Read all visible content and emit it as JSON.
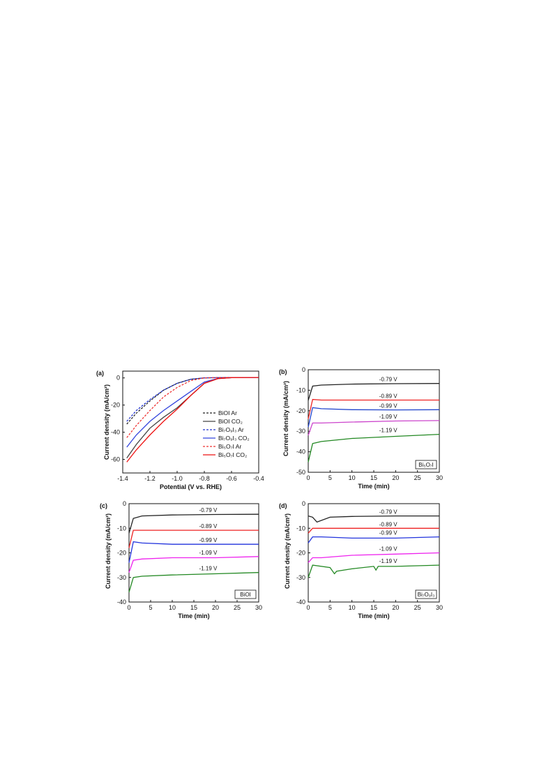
{
  "chart_data": [
    {
      "panel": "(a)",
      "type": "line",
      "xlabel": "Potential (V vs. RHE)",
      "ylabel": "Current density (mA/cm²)",
      "xlim": [
        -1.4,
        -0.4
      ],
      "ylim": [
        -70,
        5
      ],
      "xticks": [
        "-1.4",
        "-1.2",
        "-1.0",
        "-0.8",
        "-0.6",
        "-0.4"
      ],
      "yticks": [
        "0",
        "-20",
        "-40",
        "-60"
      ],
      "legend_position": "right",
      "series": [
        {
          "name": "BiOI Ar",
          "color": "#222222",
          "dash": true,
          "x": [
            -1.37,
            -1.3,
            -1.2,
            -1.1,
            -1.0,
            -0.9,
            -0.8,
            -0.7,
            -0.6,
            -0.4
          ],
          "y": [
            -34,
            -26,
            -17,
            -9,
            -4,
            -1,
            0,
            0.2,
            0.3,
            0.3
          ]
        },
        {
          "name": "BiOI CO₂",
          "color": "#444444",
          "dash": false,
          "x": [
            -1.37,
            -1.3,
            -1.2,
            -1.1,
            -1.0,
            -0.9,
            -0.8,
            -0.7,
            -0.6,
            -0.4
          ],
          "y": [
            -59,
            -49,
            -37,
            -29,
            -22,
            -13,
            -4,
            -0.5,
            0.2,
            0.3
          ]
        },
        {
          "name": "Bi₇O₉I₃ Ar",
          "color": "#2233cc",
          "dash": true,
          "x": [
            -1.37,
            -1.3,
            -1.2,
            -1.1,
            -1.0,
            -0.9,
            -0.8,
            -0.7,
            -0.6,
            -0.4
          ],
          "y": [
            -32,
            -24,
            -16,
            -9,
            -4,
            -1,
            0,
            0.2,
            0.3,
            0.3
          ]
        },
        {
          "name": "Bi₇O₉I₃ CO₂",
          "color": "#3344dd",
          "dash": false,
          "x": [
            -1.37,
            -1.3,
            -1.2,
            -1.1,
            -1.0,
            -0.9,
            -0.8,
            -0.7,
            -0.6,
            -0.4
          ],
          "y": [
            -51,
            -42,
            -32,
            -24,
            -17,
            -10,
            -3,
            -0.4,
            0.2,
            0.3
          ]
        },
        {
          "name": "Bi₅O₇I Ar",
          "color": "#ee3333",
          "dash": true,
          "x": [
            -1.37,
            -1.3,
            -1.2,
            -1.1,
            -1.0,
            -0.9,
            -0.8,
            -0.7,
            -0.6,
            -0.4
          ],
          "y": [
            -44,
            -35,
            -24,
            -14,
            -7,
            -2,
            0,
            0.2,
            0.3,
            0.3
          ]
        },
        {
          "name": "Bi₅O₇I CO₂",
          "color": "#ee1111",
          "dash": false,
          "x": [
            -1.37,
            -1.3,
            -1.2,
            -1.1,
            -1.0,
            -0.9,
            -0.8,
            -0.7,
            -0.6,
            -0.4
          ],
          "y": [
            -62,
            -53,
            -42,
            -32,
            -23,
            -13,
            -4,
            -0.5,
            0.2,
            0.3
          ]
        }
      ]
    },
    {
      "panel": "(b)",
      "type": "line",
      "xlabel": "Time (min)",
      "ylabel": "Current density (mA/cm²)",
      "xlim": [
        0,
        30
      ],
      "ylim": [
        -50,
        0
      ],
      "xticks": [
        "0",
        "5",
        "10",
        "15",
        "20",
        "25",
        "30"
      ],
      "yticks": [
        "0",
        "-10",
        "-20",
        "-30",
        "-40",
        "-50"
      ],
      "sample": "Bi₅O₇I",
      "series": [
        {
          "name": "-0.79 V",
          "color": "#222222",
          "x": [
            0,
            1,
            3,
            10,
            20,
            30
          ],
          "y": [
            -15,
            -8,
            -7.5,
            -7,
            -6.8,
            -6.7
          ]
        },
        {
          "name": "-0.89 V",
          "color": "#ee2222",
          "x": [
            0,
            1,
            3,
            10,
            20,
            30
          ],
          "y": [
            -24,
            -14.5,
            -14.8,
            -14.8,
            -14.8,
            -14.8
          ]
        },
        {
          "name": "-0.99 V",
          "color": "#2244cc",
          "x": [
            0,
            1,
            3,
            10,
            20,
            30
          ],
          "y": [
            -28,
            -18.5,
            -19,
            -19.5,
            -19.6,
            -19.5
          ]
        },
        {
          "name": "-1.09 V",
          "color": "#cc44cc",
          "x": [
            0,
            1,
            3,
            10,
            20,
            30
          ],
          "y": [
            -32,
            -26,
            -26,
            -25.5,
            -25,
            -24.8
          ]
        },
        {
          "name": "-1.19 V",
          "color": "#228822",
          "x": [
            0,
            1,
            3,
            10,
            20,
            30
          ],
          "y": [
            -45,
            -36,
            -35,
            -33.5,
            -32.5,
            -31.5
          ]
        }
      ]
    },
    {
      "panel": "(c)",
      "type": "line",
      "xlabel": "Time (min)",
      "ylabel": "Current density (mA/cm²)",
      "xlim": [
        0,
        30
      ],
      "ylim": [
        -40,
        0
      ],
      "xticks": [
        "0",
        "5",
        "10",
        "15",
        "20",
        "25",
        "30"
      ],
      "yticks": [
        "0",
        "-10",
        "-20",
        "-30",
        "-40"
      ],
      "sample": "BiOI",
      "series": [
        {
          "name": "-0.79 V",
          "color": "#222222",
          "x": [
            0,
            1,
            3,
            10,
            20,
            30
          ],
          "y": [
            -12,
            -6,
            -5,
            -4.6,
            -4.4,
            -4.3
          ]
        },
        {
          "name": "-0.89 V",
          "color": "#ee2222",
          "x": [
            0,
            1,
            3,
            10,
            20,
            30
          ],
          "y": [
            -18,
            -10.8,
            -10.8,
            -10.8,
            -10.8,
            -10.8
          ]
        },
        {
          "name": "-0.99 V",
          "color": "#2233dd",
          "x": [
            0,
            1,
            3,
            10,
            20,
            30
          ],
          "y": [
            -24,
            -15.5,
            -16,
            -16.5,
            -16.5,
            -16.5
          ]
        },
        {
          "name": "-1.09 V",
          "color": "#ee22ee",
          "x": [
            0,
            1,
            3,
            10,
            20,
            30
          ],
          "y": [
            -28,
            -23,
            -22.5,
            -22,
            -22,
            -21.5
          ]
        },
        {
          "name": "-1.19 V",
          "color": "#228822",
          "x": [
            0,
            1,
            3,
            10,
            20,
            30
          ],
          "y": [
            -36,
            -30,
            -29.5,
            -29,
            -28.5,
            -28
          ]
        }
      ]
    },
    {
      "panel": "(d)",
      "type": "line",
      "xlabel": "Time (min)",
      "ylabel": "Current density (mA/cm²)",
      "xlim": [
        0,
        30
      ],
      "ylim": [
        -40,
        0
      ],
      "xticks": [
        "0",
        "5",
        "10",
        "15",
        "20",
        "25",
        "30"
      ],
      "yticks": [
        "0",
        "-10",
        "-20",
        "-30",
        "-40"
      ],
      "sample": "Bi₇O₉I₃",
      "series": [
        {
          "name": "-0.79 V",
          "color": "#222222",
          "x": [
            0,
            1,
            2,
            5,
            10,
            20,
            30
          ],
          "y": [
            -5,
            -5.5,
            -7.5,
            -5.5,
            -5.2,
            -5,
            -5
          ]
        },
        {
          "name": "-0.89 V",
          "color": "#ee2222",
          "x": [
            0,
            1,
            3,
            10,
            20,
            30
          ],
          "y": [
            -12,
            -10,
            -10,
            -10,
            -10,
            -10
          ]
        },
        {
          "name": "-0.99 V",
          "color": "#2233dd",
          "x": [
            0,
            1,
            3,
            10,
            20,
            30
          ],
          "y": [
            -16,
            -13.5,
            -13.5,
            -14,
            -14,
            -13.5
          ]
        },
        {
          "name": "-1.09 V",
          "color": "#ee22ee",
          "x": [
            0,
            1,
            3,
            10,
            20,
            30
          ],
          "y": [
            -24,
            -22,
            -22,
            -21,
            -20.5,
            -20
          ]
        },
        {
          "name": "-1.19 V",
          "color": "#228822",
          "x": [
            0,
            1,
            5,
            6,
            6.5,
            10,
            15,
            15.5,
            16,
            20,
            30
          ],
          "y": [
            -30,
            -25,
            -26,
            -28.5,
            -27.5,
            -26.5,
            -25.5,
            -27,
            -25.5,
            -25.5,
            -25
          ]
        }
      ]
    }
  ]
}
